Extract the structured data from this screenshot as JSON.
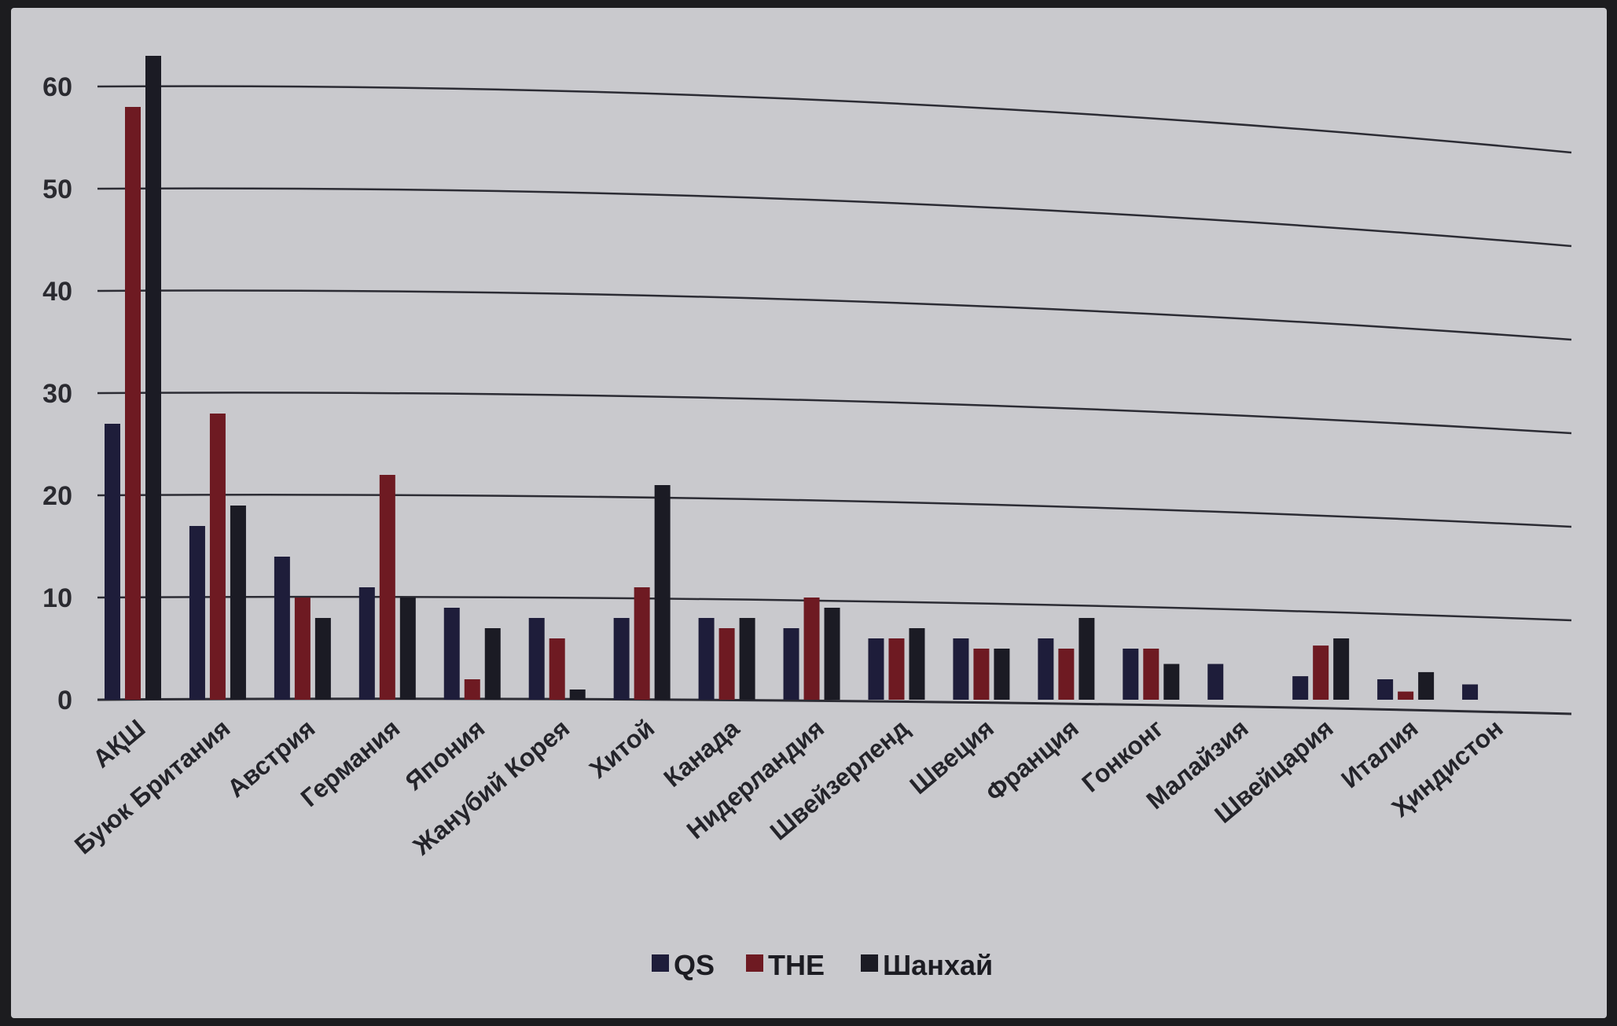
{
  "chart_data": {
    "type": "bar",
    "categories": [
      "АҚШ",
      "Буюк Британия",
      "Австрия",
      "Германия",
      "Япония",
      "Жанубий Корея",
      "Хитой",
      "Канада",
      "Нидерландия",
      "Швейзерленд",
      "Швеция",
      "Франция",
      "Гонконг",
      "Малайзия",
      "Швейцария",
      "Италия",
      "Ҳиндистон"
    ],
    "series": [
      {
        "name": "QS",
        "color": "#1e1d3a",
        "values": [
          27,
          17,
          14,
          11,
          9,
          8,
          8,
          8,
          7,
          6,
          6,
          6,
          5,
          3.5,
          2.3,
          2,
          1.5
        ]
      },
      {
        "name": "THE",
        "color": "#6e1a22",
        "values": [
          58,
          28,
          10,
          22,
          2,
          6,
          11,
          7,
          10,
          6,
          5,
          5,
          5,
          0,
          5.3,
          0.8,
          0
        ]
      },
      {
        "name": "Шанхай",
        "color": "#1b1b24",
        "values": [
          63,
          19,
          8,
          10,
          7,
          1,
          21,
          8,
          9,
          7,
          5,
          8,
          3.5,
          0,
          6,
          2.7,
          0
        ]
      }
    ],
    "y_ticks": [
      "0",
      "10",
      "20",
      "30",
      "40",
      "50",
      "60"
    ],
    "ylim": [
      0,
      65
    ],
    "grid": true,
    "legend_position": "bottom"
  }
}
